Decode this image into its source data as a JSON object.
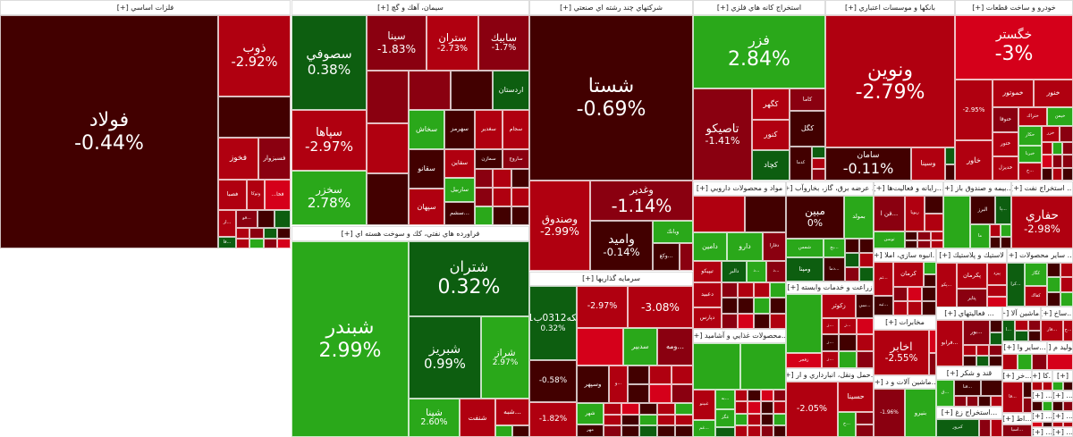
{
  "colors": {
    "dr": "#420000",
    "mr": "#8a0010",
    "r": "#b00010",
    "br": "#d5001a",
    "dg": "#0d5e10",
    "g": "#2aa81a"
  },
  "sectors": [
    {
      "title": "فلزات اساسي [+]",
      "tiles": [
        {
          "symbol": "فولاد",
          "change": "-0.44%",
          "color": "dr"
        },
        {
          "symbol": "ذوب",
          "change": "-2.92%",
          "color": "r"
        },
        {
          "symbol": "فخوز",
          "change": "",
          "color": "r"
        },
        {
          "symbol": "فسبزوار",
          "change": "",
          "color": "mr"
        },
        {
          "symbol": "فصبا",
          "change": "",
          "color": "r"
        },
        {
          "symbol": "وتوكا",
          "change": "",
          "color": "r"
        },
        {
          "symbol": "فخا...",
          "change": "",
          "color": "br"
        },
        {
          "symbol": "...ار",
          "change": "",
          "color": "r"
        },
        {
          "symbol": "...فو",
          "change": "",
          "color": "mr"
        },
        {
          "symbol": "...فا",
          "change": "",
          "color": "dg"
        }
      ]
    },
    {
      "title": "سيمان، آهك و گچ [+]",
      "tiles": [
        {
          "symbol": "سصوفي",
          "change": "0.38%",
          "color": "dg"
        },
        {
          "symbol": "سپاها",
          "change": "-2.97%",
          "color": "r"
        },
        {
          "symbol": "سخزر",
          "change": "2.78%",
          "color": "g"
        },
        {
          "symbol": "سينا",
          "change": "-1.83%",
          "color": "mr"
        },
        {
          "symbol": "ستران",
          "change": "-2.73%",
          "color": "r"
        },
        {
          "symbol": "سابيك",
          "change": "-1.7%",
          "color": "mr"
        },
        {
          "symbol": "اردستان",
          "change": "",
          "color": "dg"
        },
        {
          "symbol": "سخاش",
          "change": "",
          "color": "g"
        },
        {
          "symbol": "سهرمز",
          "change": "",
          "color": "dr"
        },
        {
          "symbol": "سغدير",
          "change": "",
          "color": "r"
        },
        {
          "symbol": "سجام",
          "change": "",
          "color": "r"
        },
        {
          "symbol": "سقانو",
          "change": "",
          "color": "dr"
        },
        {
          "symbol": "سپهان",
          "change": "",
          "color": "r"
        },
        {
          "symbol": "سقاين",
          "change": "",
          "color": "r"
        },
        {
          "symbol": "ساربيل",
          "change": "",
          "color": "g"
        },
        {
          "symbol": "...سشم",
          "change": "",
          "color": "dr"
        },
        {
          "symbol": "سمازن",
          "change": "",
          "color": "dr"
        },
        {
          "symbol": "ساروج",
          "change": "",
          "color": "mr"
        }
      ]
    },
    {
      "title": "فراورده هاي نفتي، كك و سوخت هسته اي [+]",
      "tiles": [
        {
          "symbol": "شبندر",
          "change": "2.99%",
          "color": "g"
        },
        {
          "symbol": "شتران",
          "change": "0.32%",
          "color": "dg"
        },
        {
          "symbol": "شبريز",
          "change": "0.99%",
          "color": "dg"
        },
        {
          "symbol": "شراز",
          "change": "2.97%",
          "color": "g"
        },
        {
          "symbol": "شپنا",
          "change": "2.60%",
          "color": "g"
        },
        {
          "symbol": "شنفت",
          "change": "",
          "color": "r"
        },
        {
          "symbol": "...شبه",
          "change": "",
          "color": "r"
        }
      ]
    },
    {
      "title": "شركتهاي چند رشته اي صنعتي [+]",
      "tiles": [
        {
          "symbol": "شستا",
          "change": "-0.69%",
          "color": "dr"
        },
        {
          "symbol": "وصندوق",
          "change": "-2.99%",
          "color": "r"
        },
        {
          "symbol": "وغدير",
          "change": "-1.14%",
          "color": "mr"
        },
        {
          "symbol": "واميد",
          "change": "-0.14%",
          "color": "dr"
        },
        {
          "symbol": "وبانك",
          "change": "",
          "color": "g"
        },
        {
          "symbol": "...وكغ",
          "change": "",
          "color": "dr"
        }
      ]
    },
    {
      "title": "سرمايه گذاريها [+]",
      "tiles": [
        {
          "symbol": "سكه0312ب01",
          "change": "0.32%",
          "color": "dg"
        },
        {
          "symbol": "",
          "change": "-0.58%",
          "color": "dr"
        },
        {
          "symbol": "",
          "change": "-1.82%",
          "color": "r"
        },
        {
          "symbol": "",
          "change": "-2.97%",
          "color": "r"
        },
        {
          "symbol": "",
          "change": "-3.08%",
          "color": "r"
        },
        {
          "symbol": "سدبير",
          "change": "",
          "color": "g"
        },
        {
          "symbol": "...ومه",
          "change": "",
          "color": "mr"
        },
        {
          "symbol": "وسپهر",
          "change": "",
          "color": "dr"
        },
        {
          "symbol": "...و",
          "change": "",
          "color": "r"
        },
        {
          "symbol": "شهر",
          "change": "",
          "color": "g"
        },
        {
          "symbol": "مهر",
          "change": "",
          "color": "dr"
        }
      ]
    },
    {
      "title": "استخراج كانه هاي فلزي [+]",
      "tiles": [
        {
          "symbol": "فزر",
          "change": "2.84%",
          "color": "g"
        },
        {
          "symbol": "تاصيكو",
          "change": "-1.41%",
          "color": "mr"
        },
        {
          "symbol": "كگهر",
          "change": "",
          "color": "r"
        },
        {
          "symbol": "كاما",
          "change": "",
          "color": "mr"
        },
        {
          "symbol": "كنور",
          "change": "",
          "color": "r"
        },
        {
          "symbol": "كگل",
          "change": "",
          "color": "dr"
        },
        {
          "symbol": "كچاد",
          "change": "",
          "color": "dg"
        },
        {
          "symbol": "كدما",
          "change": "",
          "color": "dr"
        }
      ]
    },
    {
      "title": "بانكها و موسسات اعتباري [+]",
      "tiles": [
        {
          "symbol": "ونوين",
          "change": "-2.79%",
          "color": "r"
        },
        {
          "symbol": "سامان",
          "change": "-0.11%",
          "color": "dr"
        },
        {
          "symbol": "وسينا",
          "change": "",
          "color": "r"
        }
      ]
    },
    {
      "title": "خودرو و ساخت قطعات [+]",
      "tiles": [
        {
          "symbol": "خگستر",
          "change": "-3%",
          "color": "br"
        },
        {
          "symbol": "",
          "change": "-2.95%",
          "color": "r"
        },
        {
          "symbol": "خاور",
          "change": "",
          "color": "r"
        },
        {
          "symbol": "خموتور",
          "change": "",
          "color": "r"
        },
        {
          "symbol": "خنور",
          "change": "",
          "color": "r"
        },
        {
          "symbol": "خنوقا",
          "change": "",
          "color": "mr"
        },
        {
          "symbol": "ختراك",
          "change": "",
          "color": "r"
        },
        {
          "symbol": "خيمن",
          "change": "",
          "color": "g"
        },
        {
          "symbol": "ختور",
          "change": "",
          "color": "r"
        },
        {
          "symbol": "حكار",
          "change": "",
          "color": "g"
        },
        {
          "symbol": "خزر",
          "change": "",
          "color": "r"
        },
        {
          "symbol": "خبرنا",
          "change": "",
          "color": "g"
        },
        {
          "symbol": "خديزل",
          "change": "",
          "color": "r"
        },
        {
          "symbol": "...خ",
          "change": "",
          "color": "r"
        }
      ]
    },
    {
      "title": "مواد و محصولات دارويي [+]",
      "tiles": [
        {
          "symbol": "دامين",
          "change": "",
          "color": "g"
        },
        {
          "symbol": "دارو",
          "change": "",
          "color": "g"
        },
        {
          "symbol": "دفارا",
          "change": "",
          "color": "mr"
        },
        {
          "symbol": "تيپيكو",
          "change": "",
          "color": "r"
        },
        {
          "symbol": "دالبر",
          "change": "",
          "color": "dg"
        },
        {
          "symbol": "...د",
          "change": "",
          "color": "g"
        },
        {
          "symbol": "...د",
          "change": "",
          "color": "mr"
        },
        {
          "symbol": "دعبيد",
          "change": "",
          "color": "r"
        },
        {
          "symbol": "دپارس",
          "change": "",
          "color": "r"
        }
      ]
    },
    {
      "title": "...محصولات غذايي و آشاميد [+]",
      "tiles": [
        {
          "symbol": "",
          "change": "",
          "color": "g"
        },
        {
          "symbol": "",
          "change": "",
          "color": "g"
        },
        {
          "symbol": "غبينو",
          "change": "",
          "color": "r"
        },
        {
          "symbol": "...به",
          "change": "",
          "color": "g"
        },
        {
          "symbol": "غگز",
          "change": "",
          "color": "g"
        },
        {
          "symbol": "...غم",
          "change": "",
          "color": "g"
        }
      ]
    },
    {
      "title": "... عرضه برق، گاز، بخاروآب [+]",
      "tiles": [
        {
          "symbol": "مبين",
          "change": "0%",
          "color": "dr"
        },
        {
          "symbol": "بمولد",
          "change": "",
          "color": "g"
        },
        {
          "symbol": "شمس",
          "change": "",
          "color": "g"
        },
        {
          "symbol": "ومپنا",
          "change": "",
          "color": "dg"
        },
        {
          "symbol": "...بج",
          "change": "",
          "color": "g"
        },
        {
          "symbol": "...دما",
          "change": "",
          "color": "dr"
        }
      ]
    },
    {
      "title": "زراعت و خدمات وابسته [+]",
      "tiles": [
        {
          "symbol": "",
          "change": "",
          "color": "g"
        },
        {
          "symbol": "زفجر",
          "change": "",
          "color": "br"
        },
        {
          "symbol": "زكوثر",
          "change": "",
          "color": "r"
        },
        {
          "symbol": "...سي",
          "change": "",
          "color": "dr"
        },
        {
          "symbol": "...ز",
          "change": "",
          "color": "r"
        },
        {
          "symbol": "...ز",
          "change": "",
          "color": "r"
        },
        {
          "symbol": "...ز",
          "change": "",
          "color": "dr"
        },
        {
          "symbol": "...ز",
          "change": "",
          "color": "r"
        }
      ]
    },
    {
      "title": "...حمل ونقل، انبارداري و ار [+]",
      "tiles": [
        {
          "symbol": "",
          "change": "-2.05%",
          "color": "r"
        },
        {
          "symbol": "حسينا",
          "change": "",
          "color": "r"
        },
        {
          "symbol": "...ح",
          "change": "",
          "color": "g"
        }
      ]
    },
    {
      "title": "...رايانه و فعاليت‌ها [+]",
      "tiles": [
        {
          "symbol": "...فن ا",
          "change": "",
          "color": "mr"
        },
        {
          "symbol": "ريويا",
          "change": "",
          "color": "r"
        },
        {
          "symbol": "توسن",
          "change": "",
          "color": "g"
        }
      ]
    },
    {
      "title": "...بيمه و صندوق باز [+]",
      "tiles": [
        {
          "symbol": "",
          "change": "",
          "color": "g"
        },
        {
          "symbol": "البرز",
          "change": "",
          "color": "dr"
        },
        {
          "symbol": "...پا",
          "change": "",
          "color": "dg"
        },
        {
          "symbol": "ما",
          "change": "",
          "color": "g"
        }
      ]
    },
    {
      "title": "... استخراج نفت [+]",
      "tiles": [
        {
          "symbol": "حفاري",
          "change": "-2.98%",
          "color": "r"
        }
      ]
    },
    {
      "title": "...انبوه سازي، املا [+]",
      "tiles": [
        {
          "symbol": "...ثم",
          "change": "",
          "color": "r"
        },
        {
          "symbol": "كرمان",
          "change": "",
          "color": "r"
        },
        {
          "symbol": "...ثبه",
          "change": "",
          "color": "dr"
        }
      ]
    },
    {
      "title": "مخابرات [+]",
      "tiles": [
        {
          "symbol": "اخابر",
          "change": "-2.55%",
          "color": "r"
        }
      ]
    },
    {
      "title": "...ماشين آلات و د [+]",
      "tiles": [
        {
          "symbol": "",
          "change": "-1.96%",
          "color": "mr"
        },
        {
          "symbol": "بنيرو",
          "change": "",
          "color": "g"
        }
      ]
    },
    {
      "title": "لاستيك و پلاستيك [+]",
      "tiles": [
        {
          "symbol": "...پكو",
          "change": "",
          "color": "r"
        },
        {
          "symbol": "پكرمان",
          "change": "",
          "color": "r"
        },
        {
          "symbol": "پيزد",
          "change": "",
          "color": "r"
        },
        {
          "symbol": "پتاير",
          "change": "",
          "color": "mr"
        }
      ]
    },
    {
      "title": "... ساير محصولات [+]",
      "tiles": [
        {
          "symbol": "...كرا",
          "change": "",
          "color": "dg"
        },
        {
          "symbol": "كگاز",
          "change": "",
          "color": "g"
        },
        {
          "symbol": "كفاك",
          "change": "",
          "color": "r"
        }
      ]
    },
    {
      "title": "... فعاليتهاي [+]",
      "tiles": [
        {
          "symbol": "...فرابو",
          "change": "",
          "color": "r"
        },
        {
          "symbol": "...بور",
          "change": "",
          "color": "mr"
        }
      ]
    },
    {
      "title": "...ماشين آلا [+]",
      "tiles": [
        {
          "symbol": "...ا",
          "change": "",
          "color": "dg"
        }
      ]
    },
    {
      "title": "...ساخ [+]",
      "tiles": [
        {
          "symbol": "...فار",
          "change": "",
          "color": "r"
        },
        {
          "symbol": "...ج",
          "change": "",
          "color": "r"
        }
      ]
    },
    {
      "title": "...ساير وا [+]",
      "tiles": []
    },
    {
      "title": "...توليد م [+]",
      "tiles": []
    },
    {
      "title": "قند و شكر [+]",
      "tiles": [
        {
          "symbol": "...ق",
          "change": "",
          "color": "g"
        },
        {
          "symbol": "...قنا",
          "change": "",
          "color": "dr"
        }
      ]
    },
    {
      "title": "...استخراج زغ [+]",
      "tiles": [
        {
          "symbol": "كبرور",
          "change": "",
          "color": "dg"
        }
      ]
    },
    {
      "title": "...خر [+]",
      "tiles": [
        {
          "symbol": "...قا",
          "change": "",
          "color": "r"
        }
      ]
    },
    {
      "title": "...كا [+]",
      "tiles": []
    },
    {
      "title": "[+]",
      "tiles": []
    },
    {
      "title": "...اط [+]",
      "tiles": [
        {
          "symbol": "...اسيا",
          "change": "",
          "color": "mr"
        }
      ]
    },
    {
      "title": "... [+]",
      "tiles": []
    },
    {
      "title": "... [+]",
      "tiles": []
    },
    {
      "title": "... [+]",
      "tiles": []
    },
    {
      "title": "... [+]",
      "tiles": []
    },
    {
      "title": "... [+]",
      "tiles": []
    },
    {
      "title": "... [+]",
      "tiles": []
    }
  ]
}
